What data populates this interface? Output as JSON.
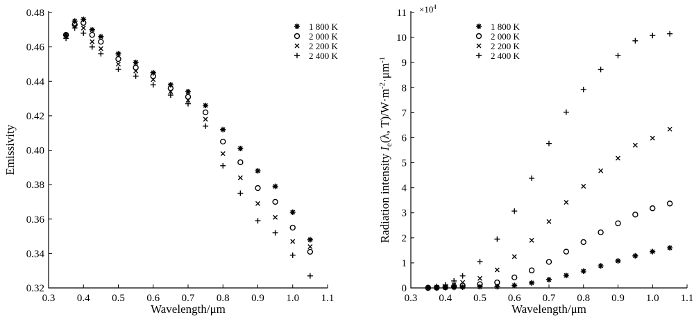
{
  "chart_data": [
    {
      "type": "scatter",
      "xlabel": "Wavelength/μm",
      "ylabel": "Emissivity",
      "xlim": [
        0.3,
        1.1
      ],
      "ylim": [
        0.32,
        0.48
      ],
      "xticks": [
        "0.3",
        "0.4",
        "0.5",
        "0.6",
        "0.7",
        "0.8",
        "0.9",
        "1.0",
        "1.1"
      ],
      "yticks": [
        "0.32",
        "0.34",
        "0.36",
        "0.38",
        "0.40",
        "0.42",
        "0.44",
        "0.46",
        "0.48"
      ],
      "legend_position": "top-right",
      "x": [
        0.35,
        0.375,
        0.4,
        0.425,
        0.45,
        0.5,
        0.55,
        0.6,
        0.65,
        0.7,
        0.75,
        0.8,
        0.85,
        0.9,
        0.95,
        1.0,
        1.05
      ],
      "series": [
        {
          "name": "1 800 K",
          "marker": "asterisk",
          "values": [
            0.467,
            0.475,
            0.476,
            0.47,
            0.466,
            0.456,
            0.451,
            0.445,
            0.438,
            0.434,
            0.426,
            0.412,
            0.401,
            0.388,
            0.379,
            0.364,
            0.348
          ]
        },
        {
          "name": "2 000 K",
          "marker": "circle",
          "values": [
            0.467,
            0.473,
            0.474,
            0.467,
            0.463,
            0.453,
            0.448,
            0.443,
            0.436,
            0.431,
            0.422,
            0.405,
            0.393,
            0.378,
            0.37,
            0.355,
            0.341
          ]
        },
        {
          "name": "2 200 K",
          "marker": "cross",
          "values": [
            0.466,
            0.472,
            0.471,
            0.463,
            0.459,
            0.45,
            0.446,
            0.441,
            0.434,
            0.429,
            0.418,
            0.398,
            0.384,
            0.369,
            0.361,
            0.347,
            0.344
          ]
        },
        {
          "name": "2 400 K",
          "marker": "plus",
          "values": [
            0.465,
            0.471,
            0.468,
            0.46,
            0.456,
            0.447,
            0.443,
            0.438,
            0.432,
            0.427,
            0.414,
            0.391,
            0.375,
            0.359,
            0.352,
            0.339,
            0.327
          ]
        }
      ]
    },
    {
      "type": "scatter",
      "xlabel": "Wavelength/μm",
      "ylabel": "Radiation intensity Ie(λ, T)/W·m-2·μm-1",
      "ylabel_parts": {
        "prefix": "Radiation intensity ",
        "I": "I",
        "sub": "e",
        "mid": "(λ, T)/W·m",
        "sup1": "-2",
        "mid2": "·μm",
        "sup2": "-1"
      },
      "multiplier": "×10",
      "multiplier_exp": "4",
      "xlim": [
        0.3,
        1.1
      ],
      "ylim": [
        0,
        11
      ],
      "xticks": [
        "0.3",
        "0.4",
        "0.5",
        "0.6",
        "0.7",
        "0.8",
        "0.9",
        "1.0",
        "1.1"
      ],
      "yticks": [
        "0",
        "1",
        "2",
        "3",
        "4",
        "5",
        "6",
        "7",
        "8",
        "9",
        "10",
        "11"
      ],
      "legend_position": "top-left",
      "x": [
        0.35,
        0.375,
        0.4,
        0.425,
        0.45,
        0.5,
        0.55,
        0.6,
        0.65,
        0.7,
        0.75,
        0.8,
        0.85,
        0.9,
        0.95,
        1.0,
        1.05
      ],
      "series": [
        {
          "name": "1 800 K",
          "marker": "asterisk",
          "values": [
            0,
            0,
            0.01,
            0.02,
            0.03,
            0.05,
            0.05,
            0.1,
            0.2,
            0.33,
            0.5,
            0.67,
            0.88,
            1.08,
            1.28,
            1.45,
            1.6
          ]
        },
        {
          "name": "2 000 K",
          "marker": "circle",
          "values": [
            0,
            0.01,
            0.03,
            0.06,
            0.1,
            0.15,
            0.22,
            0.42,
            0.7,
            1.04,
            1.45,
            1.83,
            2.22,
            2.58,
            2.93,
            3.18,
            3.37
          ]
        },
        {
          "name": "2 200 K",
          "marker": "cross",
          "values": [
            0.01,
            0.03,
            0.06,
            0.13,
            0.22,
            0.38,
            0.72,
            1.25,
            1.9,
            2.65,
            3.42,
            4.06,
            4.68,
            5.18,
            5.7,
            5.98,
            6.34
          ]
        },
        {
          "name": "2 400 K",
          "marker": "plus",
          "values": [
            0.02,
            0.06,
            0.12,
            0.28,
            0.48,
            1.05,
            1.95,
            3.07,
            4.38,
            5.77,
            7.02,
            7.92,
            8.72,
            9.28,
            9.87,
            10.08,
            10.15
          ]
        }
      ]
    }
  ]
}
